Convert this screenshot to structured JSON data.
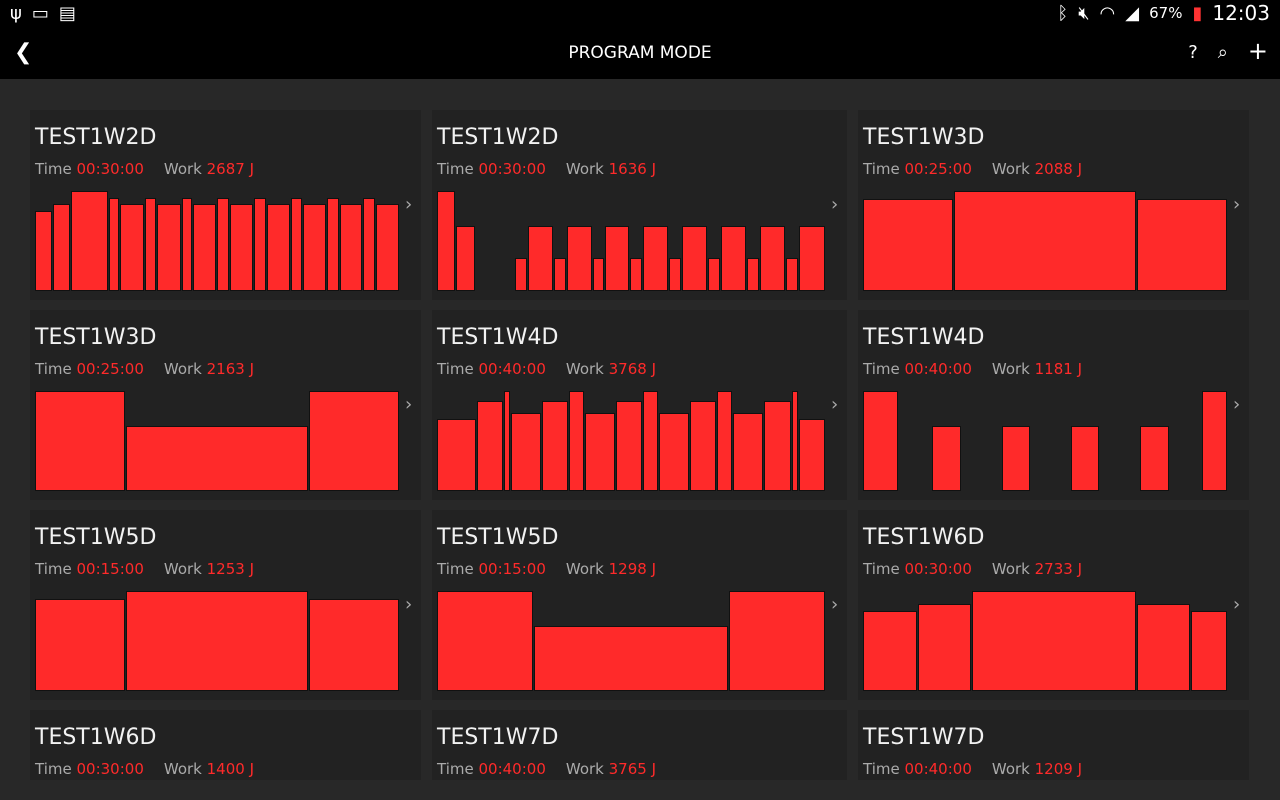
{
  "status": {
    "battery": "67%",
    "time": "12:03",
    "icons_left": [
      "usb-icon",
      "cast-icon",
      "sim-off-icon"
    ],
    "icons_right": [
      "bluetooth-icon",
      "mute-icon",
      "wifi-icon",
      "signal-icon",
      "battery-icon"
    ]
  },
  "appbar": {
    "title": "PROGRAM MODE",
    "back_icon": "chevron-left-icon",
    "actions": [
      {
        "icon": "help-icon",
        "glyph": "?"
      },
      {
        "icon": "search-icon",
        "glyph": "⌕"
      },
      {
        "icon": "add-icon",
        "glyph": "+"
      }
    ]
  },
  "labels": {
    "time": "Time",
    "work": "Work"
  },
  "colors": {
    "accent": "#ff2a2a",
    "card": "#222222",
    "background": "#282828"
  },
  "programs": [
    {
      "name": "TEST1W2D",
      "time": "00:30:00",
      "work": "2687 J",
      "profile": [
        [
          17,
          0.8
        ],
        [
          17,
          0.87
        ],
        [
          36,
          1
        ],
        [
          11,
          0.93
        ],
        [
          23,
          0.87
        ],
        [
          12,
          0.93
        ],
        [
          23,
          0.87
        ],
        [
          11,
          0.93
        ],
        [
          23,
          0.87
        ],
        [
          12,
          0.93
        ],
        [
          23,
          0.87
        ],
        [
          12,
          0.93
        ],
        [
          23,
          0.87
        ],
        [
          11,
          0.93
        ],
        [
          23,
          0.87
        ],
        [
          12,
          0.93
        ],
        [
          22,
          0.87
        ],
        [
          12,
          0.93
        ],
        [
          23,
          0.87
        ]
      ]
    },
    {
      "name": "TEST1W2D",
      "time": "00:30:00",
      "work": "1636 J",
      "profile": [
        [
          19,
          1
        ],
        [
          20,
          0.65
        ],
        [
          39,
          0
        ],
        [
          13,
          0.33
        ],
        [
          26,
          0.65
        ],
        [
          13,
          0.33
        ],
        [
          26,
          0.65
        ],
        [
          13,
          0.33
        ],
        [
          25,
          0.65
        ],
        [
          13,
          0.33
        ],
        [
          26,
          0.65
        ],
        [
          13,
          0.33
        ],
        [
          26,
          0.65
        ],
        [
          13,
          0.33
        ],
        [
          26,
          0.65
        ],
        [
          13,
          0.33
        ],
        [
          26,
          0.65
        ],
        [
          13,
          0.33
        ],
        [
          27,
          0.65
        ]
      ]
    },
    {
      "name": "TEST1W3D",
      "time": "00:25:00",
      "work": "2088 J",
      "profile": [
        [
          91,
          0.92
        ],
        [
          182,
          1
        ],
        [
          91,
          0.92
        ]
      ]
    },
    {
      "name": "TEST1W3D",
      "time": "00:25:00",
      "work": "2163 J",
      "profile": [
        [
          91,
          1
        ],
        [
          183,
          0.65
        ],
        [
          91,
          1
        ]
      ]
    },
    {
      "name": "TEST1W4D",
      "time": "00:40:00",
      "work": "3768 J",
      "profile": [
        [
          38,
          0.72
        ],
        [
          26,
          0.9
        ],
        [
          7,
          1
        ],
        [
          30,
          0.78
        ],
        [
          26,
          0.9
        ],
        [
          15,
          1
        ],
        [
          30,
          0.78
        ],
        [
          26,
          0.9
        ],
        [
          15,
          1
        ],
        [
          30,
          0.78
        ],
        [
          26,
          0.9
        ],
        [
          15,
          1
        ],
        [
          30,
          0.78
        ],
        [
          26,
          0.9
        ],
        [
          7,
          1
        ],
        [
          26,
          0.72
        ]
      ]
    },
    {
      "name": "TEST1W4D",
      "time": "00:40:00",
      "work": "1181 J",
      "profile": [
        [
          36,
          1
        ],
        [
          33,
          0
        ],
        [
          30,
          0.65
        ],
        [
          40,
          0
        ],
        [
          29,
          0.65
        ],
        [
          40,
          0
        ],
        [
          29,
          0.65
        ],
        [
          40,
          0
        ],
        [
          30,
          0.65
        ],
        [
          32,
          0
        ],
        [
          26,
          1
        ]
      ]
    },
    {
      "name": "TEST1W5D",
      "time": "00:15:00",
      "work": "1253 J",
      "profile": [
        [
          91,
          0.92
        ],
        [
          183,
          1
        ],
        [
          91,
          0.92
        ]
      ]
    },
    {
      "name": "TEST1W5D",
      "time": "00:15:00",
      "work": "1298 J",
      "profile": [
        [
          97,
          1
        ],
        [
          195,
          0.65
        ],
        [
          97,
          1
        ]
      ]
    },
    {
      "name": "TEST1W6D",
      "time": "00:30:00",
      "work": "2733 J",
      "profile": [
        [
          55,
          0.8
        ],
        [
          54,
          0.87
        ],
        [
          165,
          1
        ],
        [
          54,
          0.87
        ],
        [
          37,
          0.8
        ]
      ]
    },
    {
      "name": "TEST1W6D",
      "time": "00:30:00",
      "work": "1400 J",
      "profile": []
    },
    {
      "name": "TEST1W7D",
      "time": "00:40:00",
      "work": "3765 J",
      "profile": []
    },
    {
      "name": "TEST1W7D",
      "time": "00:40:00",
      "work": "1209 J",
      "profile": []
    }
  ]
}
